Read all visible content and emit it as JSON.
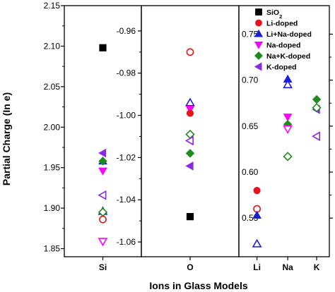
{
  "chart_data": {
    "type": "scatter",
    "xlabel": "Ions in Glass Models",
    "ylabel": "Partial Charge (In e)",
    "legend_position": "top-right",
    "series": [
      {
        "name": "SiO$_2$",
        "color": "#000000",
        "marker": "square",
        "filled": true
      },
      {
        "name": "Li-doped",
        "color": "#e8141c",
        "marker": "circle",
        "filled": true
      },
      {
        "name": "Li+Na-doped",
        "color": "#1a1fd6",
        "marker": "triangle-up",
        "filled": true
      },
      {
        "name": "Na-doped",
        "color": "#ff00ff",
        "marker": "triangle-down",
        "filled": true
      },
      {
        "name": "Na+K-doped",
        "color": "#1f8a1f",
        "marker": "diamond",
        "filled": true
      },
      {
        "name": "K-doped",
        "color": "#8a2be2",
        "marker": "triangle-left",
        "filled": true
      }
    ],
    "panels": [
      {
        "id": "si",
        "ylim": [
          1.84,
          2.15
        ],
        "yticks": [
          1.85,
          1.9,
          1.95,
          2.0,
          2.05,
          2.1,
          2.15
        ],
        "tick_labels": [
          "1.85",
          "1.90",
          "1.95",
          "2.00",
          "2.05",
          "2.10",
          "2.15"
        ],
        "categories": [
          "Si"
        ],
        "points": [
          {
            "series": 0,
            "cat": 0,
            "y": 2.098,
            "filled": true
          },
          {
            "series": 2,
            "cat": 0,
            "y": 1.958,
            "filled": true
          },
          {
            "series": 4,
            "cat": 0,
            "y": 1.958,
            "filled": true
          },
          {
            "series": 5,
            "cat": 0,
            "y": 1.968,
            "filled": true
          },
          {
            "series": 3,
            "cat": 0,
            "y": 1.946,
            "filled": true
          },
          {
            "series": 5,
            "cat": 0,
            "y": 1.916,
            "filled": false
          },
          {
            "series": 2,
            "cat": 0,
            "y": 1.896,
            "filled": false
          },
          {
            "series": 4,
            "cat": 0,
            "y": 1.895,
            "filled": false
          },
          {
            "series": 1,
            "cat": 0,
            "y": 1.886,
            "filled": false
          },
          {
            "series": 3,
            "cat": 0,
            "y": 1.859,
            "filled": false
          }
        ]
      },
      {
        "id": "o",
        "ylim": [
          -1.067,
          -0.948
        ],
        "yticks": [
          -0.96,
          -0.98,
          -1.0,
          -1.02,
          -1.04,
          -1.06
        ],
        "tick_labels": [
          "-0.96",
          "-0.98",
          "-1.00",
          "-1.02",
          "-1.04",
          "-1.06"
        ],
        "categories": [
          "O"
        ],
        "points": [
          {
            "series": 1,
            "cat": 0,
            "y": -0.97,
            "filled": false
          },
          {
            "series": 2,
            "cat": 0,
            "y": -0.994,
            "filled": false
          },
          {
            "series": 3,
            "cat": 0,
            "y": -0.997,
            "filled": true
          },
          {
            "series": 1,
            "cat": 0,
            "y": -0.999,
            "filled": true
          },
          {
            "series": 4,
            "cat": 0,
            "y": -1.009,
            "filled": false
          },
          {
            "series": 5,
            "cat": 0,
            "y": -1.012,
            "filled": false
          },
          {
            "series": 4,
            "cat": 0,
            "y": -1.018,
            "filled": true
          },
          {
            "series": 5,
            "cat": 0,
            "y": -1.024,
            "filled": true
          },
          {
            "series": 0,
            "cat": 0,
            "y": -1.048,
            "filled": true
          }
        ]
      },
      {
        "id": "alkali",
        "ylim": [
          0.508,
          0.781
        ],
        "yticks": [
          0.55,
          0.6,
          0.65,
          0.7,
          0.75
        ],
        "tick_labels": [
          "0.55",
          "0.60",
          "0.65",
          "0.70",
          "0.75"
        ],
        "categories": [
          "Li",
          "Na",
          "K"
        ],
        "points": [
          {
            "series": 1,
            "cat": 0,
            "y": 0.58,
            "filled": true
          },
          {
            "series": 1,
            "cat": 0,
            "y": 0.56,
            "filled": false
          },
          {
            "series": 2,
            "cat": 0,
            "y": 0.553,
            "filled": true
          },
          {
            "series": 2,
            "cat": 0,
            "y": 0.522,
            "filled": false
          },
          {
            "series": 2,
            "cat": 1,
            "y": 0.701,
            "filled": true
          },
          {
            "series": 2,
            "cat": 1,
            "y": 0.695,
            "filled": false
          },
          {
            "series": 3,
            "cat": 1,
            "y": 0.66,
            "filled": true
          },
          {
            "series": 4,
            "cat": 1,
            "y": 0.652,
            "filled": true
          },
          {
            "series": 3,
            "cat": 1,
            "y": 0.647,
            "filled": false
          },
          {
            "series": 4,
            "cat": 1,
            "y": 0.617,
            "filled": false
          },
          {
            "series": 4,
            "cat": 2,
            "y": 0.679,
            "filled": true
          },
          {
            "series": 5,
            "cat": 2,
            "y": 0.668,
            "filled": true
          },
          {
            "series": 4,
            "cat": 2,
            "y": 0.67,
            "filled": false
          },
          {
            "series": 5,
            "cat": 2,
            "y": 0.639,
            "filled": false
          }
        ]
      }
    ]
  }
}
